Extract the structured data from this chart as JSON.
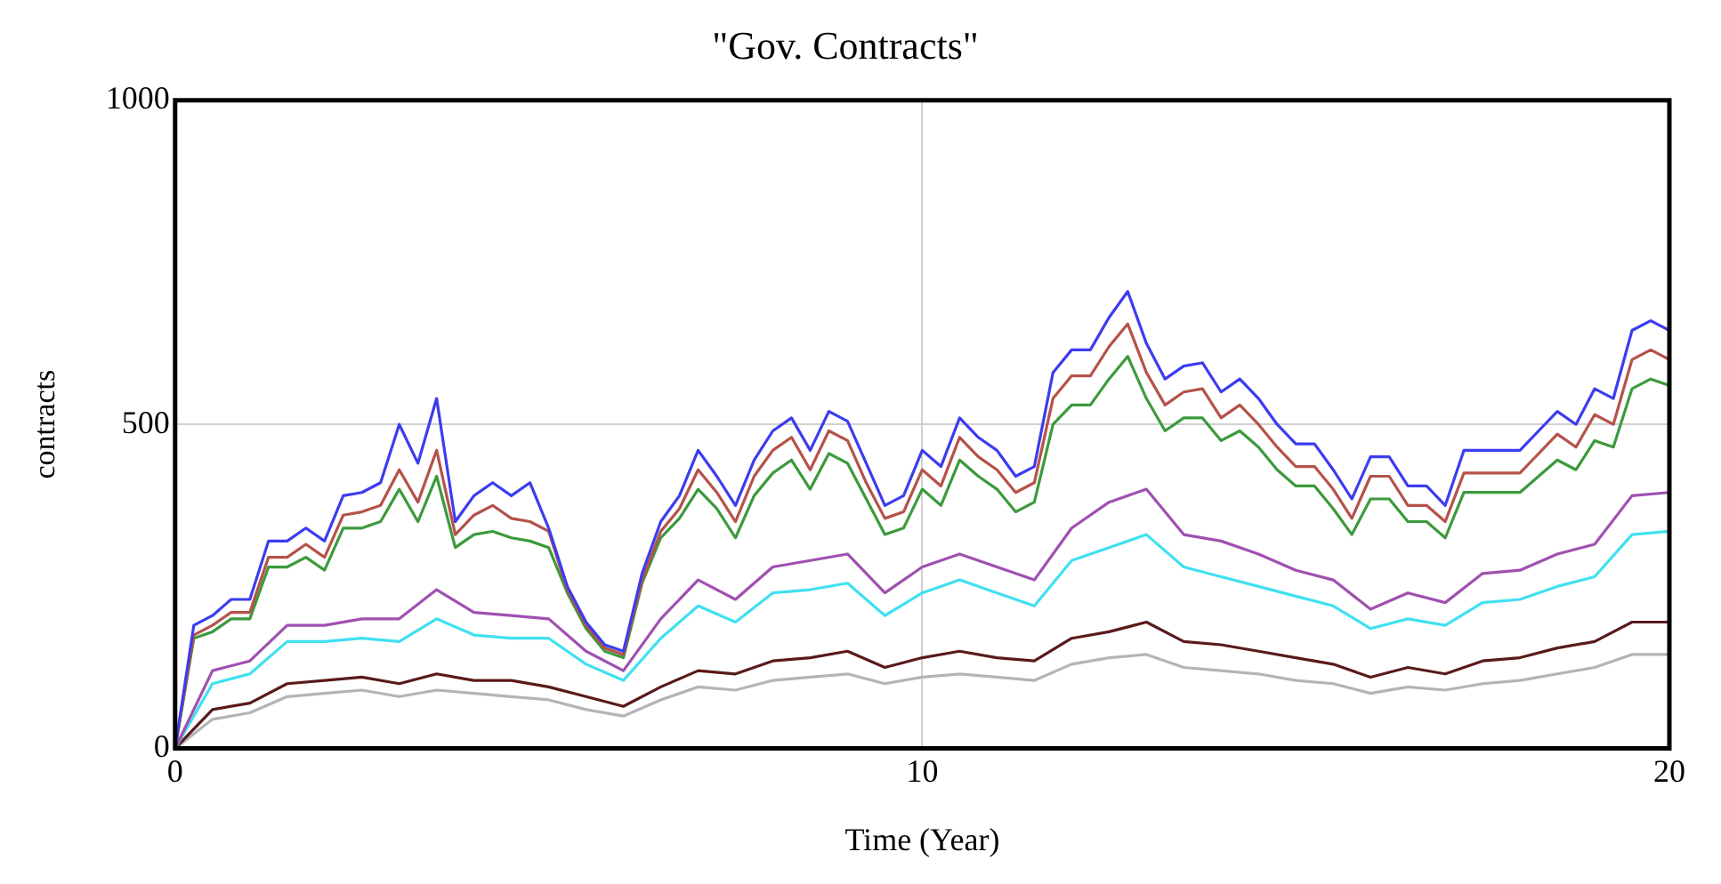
{
  "chart_data": {
    "type": "line",
    "title": "\"Gov. Contracts\"",
    "xlabel": "Time (Year)",
    "ylabel": "contracts",
    "xlim": [
      0,
      20
    ],
    "xticks": [
      0,
      10,
      20
    ],
    "ylim": [
      0,
      1000
    ],
    "yticks": [
      0,
      500,
      1000
    ],
    "grid": true,
    "legend": false,
    "marker": "none",
    "line_style": "solid",
    "series": [
      {
        "color": "#3c3cf0",
        "x": [
          0,
          0.25,
          0.5,
          0.75,
          1,
          1.25,
          1.5,
          1.75,
          2,
          2.25,
          2.5,
          2.75,
          3,
          3.25,
          3.5,
          3.75,
          4,
          4.25,
          4.5,
          4.75,
          5,
          5.25,
          5.5,
          5.75,
          6,
          6.25,
          6.5,
          6.75,
          7,
          7.25,
          7.5,
          7.75,
          8,
          8.25,
          8.5,
          8.75,
          9,
          9.25,
          9.5,
          9.75,
          10,
          10.25,
          10.5,
          10.75,
          11,
          11.25,
          11.5,
          11.75,
          12,
          12.25,
          12.5,
          12.75,
          13,
          13.25,
          13.5,
          13.75,
          14,
          14.25,
          14.5,
          14.75,
          15,
          15.25,
          15.5,
          15.75,
          16,
          16.25,
          16.5,
          16.75,
          17,
          17.25,
          17.5,
          17.75,
          18,
          18.25,
          18.5,
          18.75,
          19,
          19.25,
          19.5,
          19.75,
          20
        ],
        "values": [
          0,
          190,
          205,
          230,
          230,
          320,
          320,
          340,
          320,
          390,
          395,
          410,
          500,
          440,
          540,
          350,
          390,
          410,
          390,
          410,
          340,
          250,
          195,
          160,
          150,
          270,
          350,
          390,
          460,
          420,
          375,
          445,
          490,
          510,
          460,
          520,
          505,
          440,
          375,
          390,
          460,
          435,
          510,
          480,
          460,
          420,
          435,
          580,
          615,
          615,
          665,
          705,
          625,
          570,
          590,
          595,
          550,
          570,
          540,
          500,
          470,
          470,
          430,
          385,
          450,
          450,
          405,
          405,
          375,
          460,
          460,
          460,
          460,
          490,
          520,
          500,
          555,
          540,
          645,
          660,
          645
        ]
      },
      {
        "color": "#b5524a",
        "x": [
          0,
          0.25,
          0.5,
          0.75,
          1,
          1.25,
          1.5,
          1.75,
          2,
          2.25,
          2.5,
          2.75,
          3,
          3.25,
          3.5,
          3.75,
          4,
          4.25,
          4.5,
          4.75,
          5,
          5.25,
          5.5,
          5.75,
          6,
          6.25,
          6.5,
          6.75,
          7,
          7.25,
          7.5,
          7.75,
          8,
          8.25,
          8.5,
          8.75,
          9,
          9.25,
          9.5,
          9.75,
          10,
          10.25,
          10.5,
          10.75,
          11,
          11.25,
          11.5,
          11.75,
          12,
          12.25,
          12.5,
          12.75,
          13,
          13.25,
          13.5,
          13.75,
          14,
          14.25,
          14.5,
          14.75,
          15,
          15.25,
          15.5,
          15.75,
          16,
          16.25,
          16.5,
          16.75,
          17,
          17.25,
          17.5,
          17.75,
          18,
          18.25,
          18.5,
          18.75,
          19,
          19.25,
          19.5,
          19.75,
          20
        ],
        "values": [
          0,
          175,
          190,
          210,
          210,
          295,
          295,
          315,
          295,
          360,
          365,
          375,
          430,
          380,
          460,
          330,
          360,
          375,
          355,
          350,
          335,
          245,
          190,
          155,
          145,
          260,
          335,
          370,
          430,
          395,
          350,
          420,
          460,
          480,
          430,
          490,
          475,
          410,
          355,
          365,
          430,
          405,
          480,
          450,
          430,
          395,
          410,
          540,
          575,
          575,
          620,
          655,
          580,
          530,
          550,
          555,
          510,
          530,
          500,
          465,
          435,
          435,
          400,
          355,
          420,
          420,
          375,
          375,
          350,
          425,
          425,
          425,
          425,
          455,
          485,
          465,
          515,
          500,
          600,
          615,
          600
        ]
      },
      {
        "color": "#3c9a3c",
        "x": [
          0,
          0.25,
          0.5,
          0.75,
          1,
          1.25,
          1.5,
          1.75,
          2,
          2.25,
          2.5,
          2.75,
          3,
          3.25,
          3.5,
          3.75,
          4,
          4.25,
          4.5,
          4.75,
          5,
          5.25,
          5.5,
          5.75,
          6,
          6.25,
          6.5,
          6.75,
          7,
          7.25,
          7.5,
          7.75,
          8,
          8.25,
          8.5,
          8.75,
          9,
          9.25,
          9.5,
          9.75,
          10,
          10.25,
          10.5,
          10.75,
          11,
          11.25,
          11.5,
          11.75,
          12,
          12.25,
          12.5,
          12.75,
          13,
          13.25,
          13.5,
          13.75,
          14,
          14.25,
          14.5,
          14.75,
          15,
          15.25,
          15.5,
          15.75,
          16,
          16.25,
          16.5,
          16.75,
          17,
          17.25,
          17.5,
          17.75,
          18,
          18.25,
          18.5,
          18.75,
          19,
          19.25,
          19.5,
          19.75,
          20
        ],
        "values": [
          0,
          170,
          180,
          200,
          200,
          280,
          280,
          295,
          275,
          340,
          340,
          350,
          400,
          350,
          420,
          310,
          330,
          335,
          325,
          320,
          310,
          240,
          185,
          150,
          140,
          255,
          325,
          355,
          400,
          370,
          325,
          390,
          425,
          445,
          400,
          455,
          440,
          385,
          330,
          340,
          400,
          375,
          445,
          420,
          400,
          365,
          380,
          500,
          530,
          530,
          570,
          605,
          540,
          490,
          510,
          510,
          475,
          490,
          465,
          430,
          405,
          405,
          370,
          330,
          385,
          385,
          350,
          350,
          325,
          395,
          395,
          395,
          395,
          420,
          445,
          430,
          475,
          465,
          555,
          570,
          560
        ]
      },
      {
        "color": "#a050b0",
        "x": [
          0,
          0.5,
          1,
          1.5,
          2,
          2.5,
          3,
          3.5,
          4,
          4.5,
          5,
          5.5,
          6,
          6.5,
          7,
          7.5,
          8,
          8.5,
          9,
          9.5,
          10,
          10.5,
          11,
          11.5,
          12,
          12.5,
          13,
          13.5,
          14,
          14.5,
          15,
          15.5,
          16,
          16.5,
          17,
          17.5,
          18,
          18.5,
          19,
          19.5,
          20
        ],
        "values": [
          0,
          120,
          135,
          190,
          190,
          200,
          200,
          245,
          210,
          205,
          200,
          150,
          120,
          200,
          260,
          230,
          280,
          290,
          300,
          240,
          280,
          300,
          280,
          260,
          340,
          380,
          400,
          330,
          320,
          300,
          275,
          260,
          215,
          240,
          225,
          270,
          275,
          300,
          315,
          390,
          395
        ]
      },
      {
        "color": "#40e0f0",
        "x": [
          0,
          0.5,
          1,
          1.5,
          2,
          2.5,
          3,
          3.5,
          4,
          4.5,
          5,
          5.5,
          6,
          6.5,
          7,
          7.5,
          8,
          8.5,
          9,
          9.5,
          10,
          10.5,
          11,
          11.5,
          12,
          12.5,
          13,
          13.5,
          14,
          14.5,
          15,
          15.5,
          16,
          16.5,
          17,
          17.5,
          18,
          18.5,
          19,
          19.5,
          20
        ],
        "values": [
          0,
          100,
          115,
          165,
          165,
          170,
          165,
          200,
          175,
          170,
          170,
          130,
          105,
          170,
          220,
          195,
          240,
          245,
          255,
          205,
          240,
          260,
          240,
          220,
          290,
          310,
          330,
          280,
          265,
          250,
          235,
          220,
          185,
          200,
          190,
          225,
          230,
          250,
          265,
          330,
          335
        ]
      },
      {
        "color": "#5a1a1a",
        "x": [
          0,
          0.5,
          1,
          1.5,
          2,
          2.5,
          3,
          3.5,
          4,
          4.5,
          5,
          5.5,
          6,
          6.5,
          7,
          7.5,
          8,
          8.5,
          9,
          9.5,
          10,
          10.5,
          11,
          11.5,
          12,
          12.5,
          13,
          13.5,
          14,
          14.5,
          15,
          15.5,
          16,
          16.5,
          17,
          17.5,
          18,
          18.5,
          19,
          19.5,
          20
        ],
        "values": [
          0,
          60,
          70,
          100,
          105,
          110,
          100,
          115,
          105,
          105,
          95,
          80,
          65,
          95,
          120,
          115,
          135,
          140,
          150,
          125,
          140,
          150,
          140,
          135,
          170,
          180,
          195,
          165,
          160,
          150,
          140,
          130,
          110,
          125,
          115,
          135,
          140,
          155,
          165,
          195,
          195
        ]
      },
      {
        "color": "#b4b4b4",
        "x": [
          0,
          0.5,
          1,
          1.5,
          2,
          2.5,
          3,
          3.5,
          4,
          4.5,
          5,
          5.5,
          6,
          6.5,
          7,
          7.5,
          8,
          8.5,
          9,
          9.5,
          10,
          10.5,
          11,
          11.5,
          12,
          12.5,
          13,
          13.5,
          14,
          14.5,
          15,
          15.5,
          16,
          16.5,
          17,
          17.5,
          18,
          18.5,
          19,
          19.5,
          20
        ],
        "values": [
          0,
          45,
          55,
          80,
          85,
          90,
          80,
          90,
          85,
          80,
          75,
          60,
          50,
          75,
          95,
          90,
          105,
          110,
          115,
          100,
          110,
          115,
          110,
          105,
          130,
          140,
          145,
          125,
          120,
          115,
          105,
          100,
          85,
          95,
          90,
          100,
          105,
          115,
          125,
          145,
          145
        ]
      }
    ]
  }
}
